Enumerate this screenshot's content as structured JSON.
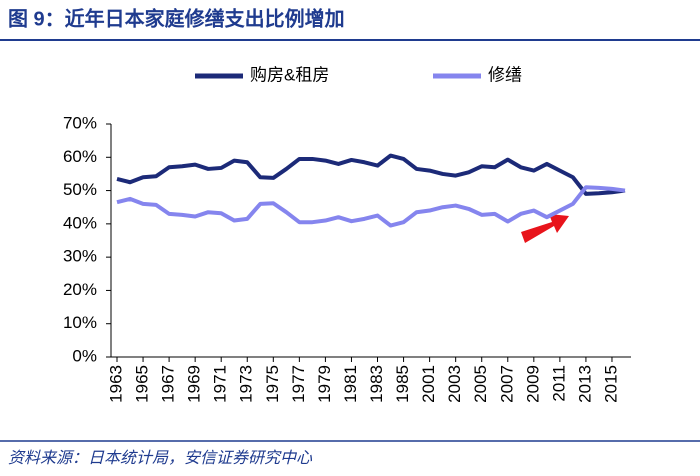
{
  "chart_data": {
    "type": "line",
    "title": "图 9：近年日本家庭修缮支出比例增加",
    "source": "资料来源：日本统计局，安信证券研究中心",
    "categories": [
      "1963",
      null,
      "1965",
      null,
      "1967",
      null,
      "1969",
      null,
      "1971",
      null,
      "1973",
      null,
      "1975",
      null,
      "1977",
      null,
      "1979",
      null,
      "1981",
      null,
      "1983",
      null,
      "1985",
      null,
      "2001",
      null,
      "2003",
      null,
      "2005",
      null,
      "2007",
      null,
      "2009",
      null,
      "2011",
      null,
      "2013",
      null,
      "2015",
      null
    ],
    "series": [
      {
        "name": "购房&租房",
        "color": "#1c2a78",
        "values": [
          53.5,
          52.5,
          54,
          54.3,
          57,
          57.3,
          57.8,
          56.5,
          56.8,
          59,
          58.5,
          54,
          53.8,
          56.5,
          59.5,
          59.5,
          59,
          58,
          59.2,
          58.5,
          57.5,
          60.5,
          59.5,
          56.5,
          56,
          55,
          54.5,
          55.5,
          57.3,
          57,
          59.3,
          57,
          56,
          58,
          56,
          54,
          49,
          49.2,
          49.5,
          50
        ]
      },
      {
        "name": "修缮",
        "color": "#8585ee",
        "values": [
          46.5,
          47.5,
          46,
          45.7,
          43,
          42.7,
          42.2,
          43.5,
          43.2,
          41,
          41.5,
          46,
          46.2,
          43.5,
          40.5,
          40.5,
          41,
          42,
          40.8,
          41.5,
          42.5,
          39.5,
          40.5,
          43.5,
          44,
          45,
          45.5,
          44.5,
          42.7,
          43,
          40.7,
          43,
          44,
          42,
          44,
          46,
          51,
          50.8,
          50.5,
          50
        ]
      }
    ],
    "ylim": [
      0,
      70
    ],
    "yticks": [
      {
        "value": 0,
        "label": "0%"
      },
      {
        "value": 10,
        "label": "10%"
      },
      {
        "value": 20,
        "label": "20%"
      },
      {
        "value": 30,
        "label": "30%"
      },
      {
        "value": 40,
        "label": "40%"
      },
      {
        "value": 50,
        "label": "50%"
      },
      {
        "value": 60,
        "label": "60%"
      },
      {
        "value": 70,
        "label": "70%"
      }
    ],
    "legend": "top"
  }
}
